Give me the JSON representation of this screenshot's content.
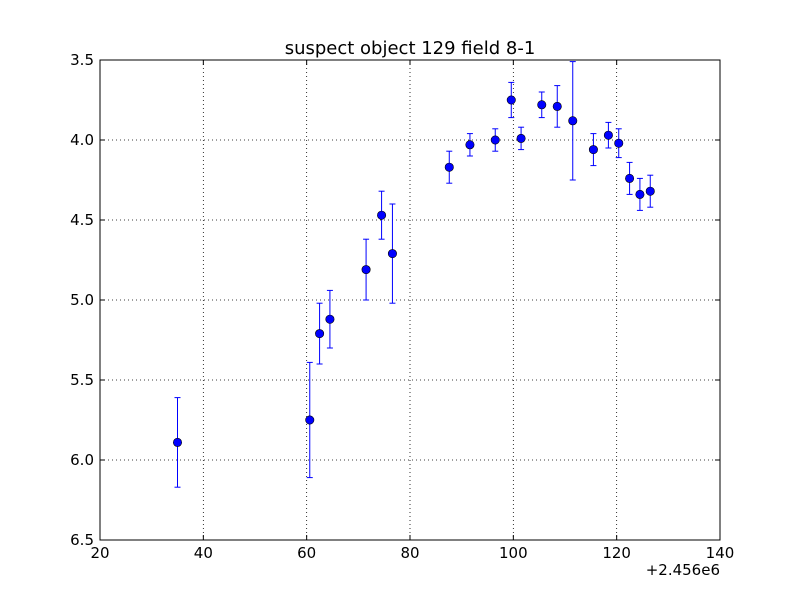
{
  "chart_data": {
    "type": "scatter",
    "title": "suspect object 129 field 8-1",
    "xlabel": "",
    "ylabel": "",
    "x_offset_label": "+2.456e6",
    "xlim": [
      20,
      140
    ],
    "ylim": [
      3.5,
      6.5
    ],
    "y_inverted": true,
    "grid": true,
    "xticks": [
      "20",
      "40",
      "60",
      "80",
      "100",
      "120",
      "140"
    ],
    "yticks": [
      "3.5",
      "4.0",
      "4.5",
      "5.0",
      "5.5",
      "6.0",
      "6.5"
    ],
    "series": [
      {
        "marker_color": "#0000ff",
        "points": [
          {
            "x": 35.0,
            "y": 5.89,
            "err": 0.28
          },
          {
            "x": 60.6,
            "y": 5.75,
            "err": 0.36
          },
          {
            "x": 62.5,
            "y": 5.21,
            "err": 0.19
          },
          {
            "x": 64.5,
            "y": 5.12,
            "err": 0.18
          },
          {
            "x": 71.5,
            "y": 4.81,
            "err": 0.19
          },
          {
            "x": 74.5,
            "y": 4.47,
            "err": 0.15
          },
          {
            "x": 76.6,
            "y": 4.71,
            "err": 0.31
          },
          {
            "x": 87.6,
            "y": 4.17,
            "err": 0.1
          },
          {
            "x": 91.6,
            "y": 4.03,
            "err": 0.07
          },
          {
            "x": 96.5,
            "y": 4.0,
            "err": 0.07
          },
          {
            "x": 99.6,
            "y": 3.75,
            "err": 0.11
          },
          {
            "x": 101.5,
            "y": 3.99,
            "err": 0.07
          },
          {
            "x": 105.5,
            "y": 3.78,
            "err": 0.08
          },
          {
            "x": 108.5,
            "y": 3.79,
            "err": 0.13
          },
          {
            "x": 111.5,
            "y": 3.88,
            "err": 0.37
          },
          {
            "x": 115.5,
            "y": 4.06,
            "err": 0.1
          },
          {
            "x": 118.4,
            "y": 3.97,
            "err": 0.08
          },
          {
            "x": 120.4,
            "y": 4.02,
            "err": 0.09
          },
          {
            "x": 122.5,
            "y": 4.24,
            "err": 0.1
          },
          {
            "x": 124.5,
            "y": 4.34,
            "err": 0.1
          },
          {
            "x": 126.5,
            "y": 4.32,
            "err": 0.1
          }
        ]
      }
    ]
  }
}
